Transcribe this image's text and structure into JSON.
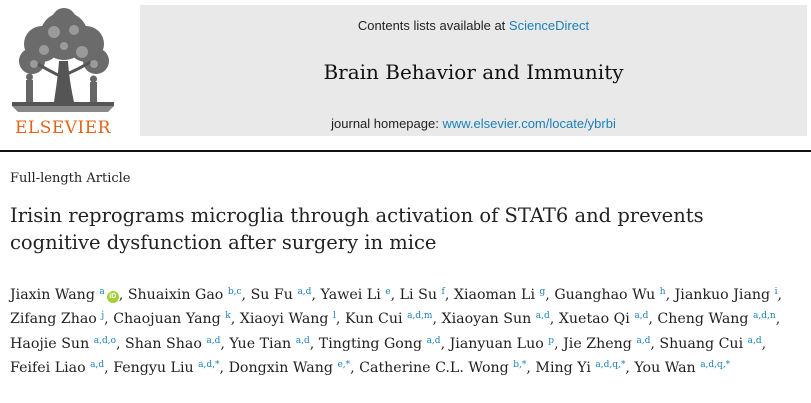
{
  "publisher": {
    "name": "ELSEVIER"
  },
  "banner": {
    "contents_prefix": "Contents lists available at ",
    "contents_link": "ScienceDirect",
    "journal_title": "Brain Behavior and Immunity",
    "homepage_prefix": "journal homepage: ",
    "homepage_link": "www.elsevier.com/locate/ybrbi"
  },
  "article": {
    "type": "Full-length Article",
    "title": "Irisin reprograms microglia through activation of STAT6 and prevents cognitive dysfunction after surgery in mice",
    "authors": [
      {
        "name": "Jiaxin Wang",
        "aff": "a",
        "orcid": "iD"
      },
      {
        "name": "Shuaixin Gao",
        "aff": "b,c"
      },
      {
        "name": "Su Fu",
        "aff": "a,d"
      },
      {
        "name": "Yawei Li",
        "aff": "e"
      },
      {
        "name": "Li Su",
        "aff": "f"
      },
      {
        "name": "Xiaoman Li",
        "aff": "g"
      },
      {
        "name": "Guanghao Wu",
        "aff": "h"
      },
      {
        "name": "Jiankuo Jiang",
        "aff": "i"
      },
      {
        "name": "Zifang Zhao",
        "aff": "j"
      },
      {
        "name": "Chaojuan Yang",
        "aff": "k"
      },
      {
        "name": "Xiaoyi Wang",
        "aff": "l"
      },
      {
        "name": "Kun Cui",
        "aff": "a,d,m"
      },
      {
        "name": "Xiaoyan Sun",
        "aff": "a,d"
      },
      {
        "name": "Xuetao Qi",
        "aff": "a,d"
      },
      {
        "name": "Cheng Wang",
        "aff": "a,d,n"
      },
      {
        "name": "Haojie Sun",
        "aff": "a,d,o"
      },
      {
        "name": "Shan Shao",
        "aff": "a,d"
      },
      {
        "name": "Yue Tian",
        "aff": "a,d"
      },
      {
        "name": "Tingting Gong",
        "aff": "a,d"
      },
      {
        "name": "Jianyuan Luo",
        "aff": "p"
      },
      {
        "name": "Jie Zheng",
        "aff": "a,d"
      },
      {
        "name": "Shuang Cui",
        "aff": "a,d"
      },
      {
        "name": "Feifei Liao",
        "aff": "a,d"
      },
      {
        "name": "Fengyu Liu",
        "aff": "a,d,*"
      },
      {
        "name": "Dongxin Wang",
        "aff": "e,*"
      },
      {
        "name": "Catherine C.L. Wong",
        "aff": "b,*"
      },
      {
        "name": "Ming Yi",
        "aff": "a,d,q,*"
      },
      {
        "name": "You Wan",
        "aff": "a,d,q,*"
      }
    ]
  },
  "colors": {
    "publisher": "#e0661a",
    "link": "#1a7fb8",
    "banner_bg": "#e9e9e9",
    "orcid": "#a6ce39"
  },
  "icons": {
    "logo": "elsevier-tree-logo",
    "orcid": "orcid-icon"
  }
}
